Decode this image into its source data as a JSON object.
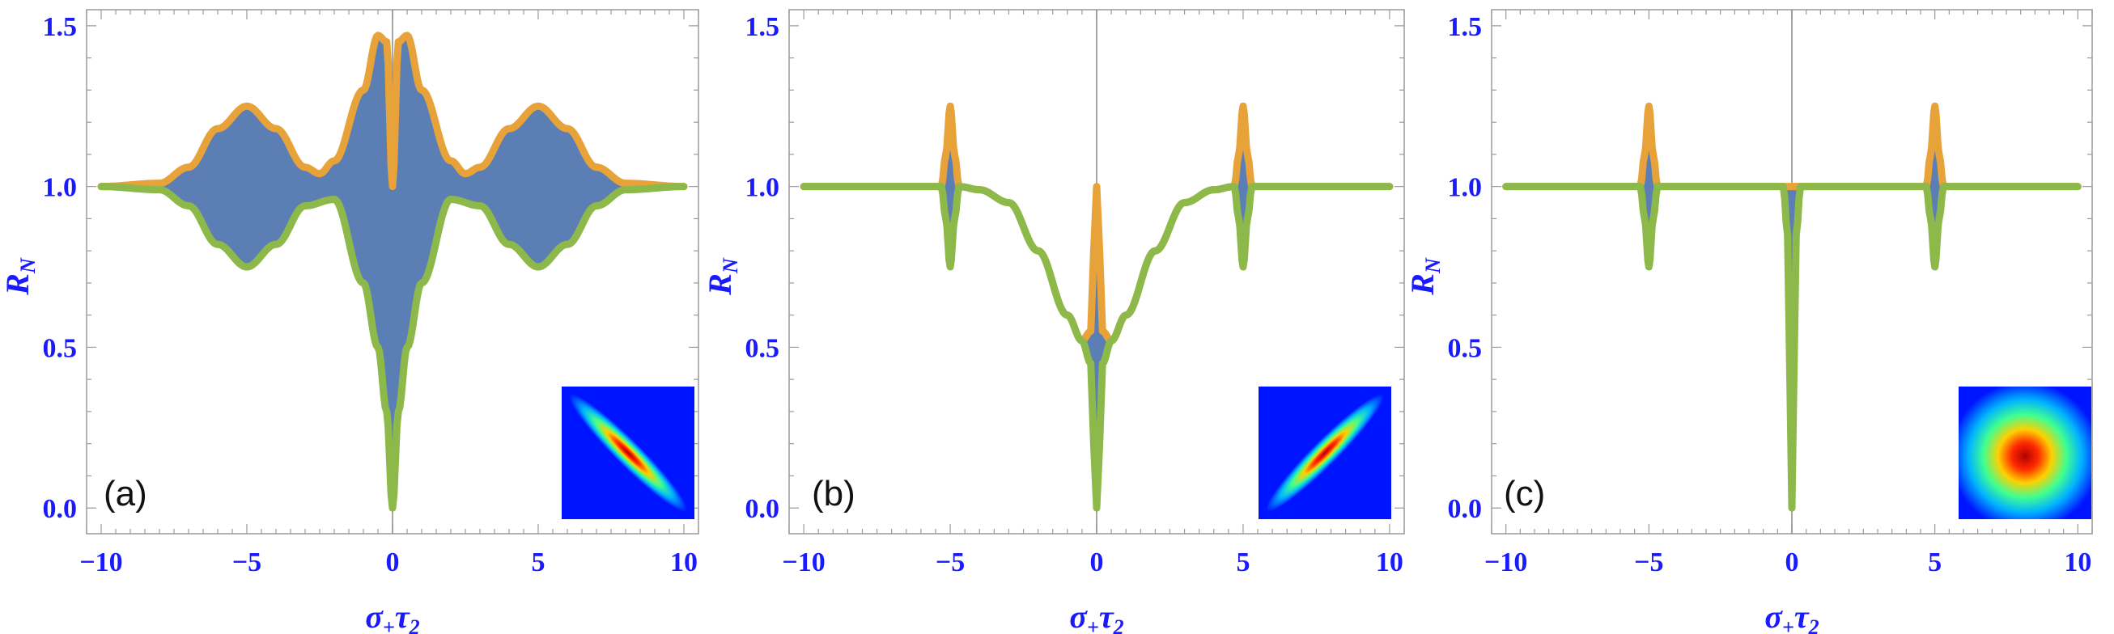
{
  "chart_data": [
    {
      "panel": "(a)",
      "type": "area",
      "xlabel": {
        "main": "σ",
        "sub1": "+",
        "mid": "τ",
        "sub2": "2"
      },
      "ylabel": {
        "main": "R",
        "sub": "N"
      },
      "xlim": [
        -10.5,
        10.5
      ],
      "ylim": [
        -0.08,
        1.55
      ],
      "xticks": [
        -10,
        -5,
        0,
        5,
        10
      ],
      "yticks": [
        0.0,
        0.5,
        1.0,
        1.5
      ],
      "xtick_labels": [
        "−10",
        "−5",
        "0",
        "5",
        "10"
      ],
      "ytick_labels": [
        "0.0",
        "0.5",
        "1.0",
        "1.5"
      ],
      "series": [
        {
          "values_x": [
            -10,
            -8,
            -7,
            -6,
            -5,
            -4,
            -3,
            -2.5,
            -2,
            -1,
            -0.5,
            -0.2,
            0,
            0.2,
            0.5,
            1,
            2,
            2.5,
            3,
            4,
            5,
            6,
            7,
            8,
            10
          ],
          "values_y": [
            1.0,
            1.01,
            1.06,
            1.18,
            1.25,
            1.18,
            1.06,
            1.04,
            1.08,
            1.3,
            1.47,
            1.45,
            1.0,
            1.45,
            1.47,
            1.3,
            1.08,
            1.04,
            1.06,
            1.18,
            1.25,
            1.18,
            1.06,
            1.01,
            1.0
          ]
        },
        {
          "values_x": [
            -10,
            -8,
            -7,
            -6,
            -5,
            -4,
            -3,
            -2,
            -1,
            -0.5,
            -0.2,
            0,
            0.2,
            0.5,
            1,
            2,
            3,
            4,
            5,
            6,
            7,
            8,
            10
          ],
          "values_y": [
            1.0,
            0.99,
            0.94,
            0.82,
            0.75,
            0.82,
            0.94,
            0.96,
            0.7,
            0.5,
            0.3,
            0.0,
            0.3,
            0.5,
            0.7,
            0.96,
            0.94,
            0.82,
            0.75,
            0.82,
            0.94,
            0.99,
            1.0
          ]
        }
      ],
      "colors": {
        "fill": "#5b7fb5",
        "upper": "#e8a23a",
        "lower": "#8db84a"
      },
      "inset": {
        "kind": "ellipse",
        "orientation": "anti-diagonal"
      }
    },
    {
      "panel": "(b)",
      "type": "area",
      "xlabel": {
        "main": "σ",
        "sub1": "+",
        "mid": "τ",
        "sub2": "2"
      },
      "ylabel": {
        "main": "R",
        "sub": "N"
      },
      "xlim": [
        -10.5,
        10.5
      ],
      "ylim": [
        -0.08,
        1.55
      ],
      "xticks": [
        -10,
        -5,
        0,
        5,
        10
      ],
      "yticks": [
        0.0,
        0.5,
        1.0,
        1.5
      ],
      "xtick_labels": [
        "−10",
        "−5",
        "0",
        "5",
        "10"
      ],
      "ytick_labels": [
        "0.0",
        "0.5",
        "1.0",
        "1.5"
      ],
      "series": [
        {
          "values_x": [
            -10,
            -5.3,
            -5.15,
            -5,
            -4.85,
            -4.7,
            -4,
            -3,
            -2,
            -1,
            -0.5,
            -0.2,
            -0.1,
            0,
            0.1,
            0.2,
            0.5,
            1,
            2,
            3,
            4,
            4.7,
            4.85,
            5,
            5.15,
            5.3,
            10
          ],
          "values_y": [
            1.0,
            1.0,
            1.1,
            1.25,
            1.1,
            1.0,
            0.99,
            0.95,
            0.8,
            0.6,
            0.52,
            0.55,
            0.8,
            1.0,
            0.8,
            0.55,
            0.52,
            0.6,
            0.8,
            0.95,
            0.99,
            1.0,
            1.1,
            1.25,
            1.1,
            1.0,
            1.0
          ]
        },
        {
          "values_x": [
            -10,
            -5.3,
            -5.15,
            -5,
            -4.85,
            -4.7,
            -4,
            -3,
            -2,
            -1,
            -0.5,
            -0.2,
            -0.1,
            0,
            0.1,
            0.2,
            0.5,
            1,
            2,
            3,
            4,
            4.7,
            4.85,
            5,
            5.15,
            5.3,
            10
          ],
          "values_y": [
            1.0,
            1.0,
            0.9,
            0.75,
            0.9,
            1.0,
            0.99,
            0.95,
            0.8,
            0.6,
            0.52,
            0.45,
            0.2,
            0.0,
            0.2,
            0.45,
            0.52,
            0.6,
            0.8,
            0.95,
            0.99,
            1.0,
            0.9,
            0.75,
            0.9,
            1.0,
            1.0
          ]
        }
      ],
      "colors": {
        "fill": "#5b7fb5",
        "upper": "#e8a23a",
        "lower": "#8db84a"
      },
      "inset": {
        "kind": "ellipse",
        "orientation": "diagonal"
      }
    },
    {
      "panel": "(c)",
      "type": "area",
      "xlabel": {
        "main": "σ",
        "sub1": "+",
        "mid": "τ",
        "sub2": "2"
      },
      "ylabel": {
        "main": "R",
        "sub": "N"
      },
      "xlim": [
        -10.5,
        10.5
      ],
      "ylim": [
        -0.08,
        1.55
      ],
      "xticks": [
        -10,
        -5,
        0,
        5,
        10
      ],
      "yticks": [
        0.0,
        0.5,
        1.0,
        1.5
      ],
      "xtick_labels": [
        "−10",
        "−5",
        "0",
        "5",
        "10"
      ],
      "ytick_labels": [
        "0.0",
        "0.5",
        "1.0",
        "1.5"
      ],
      "series": [
        {
          "values_x": [
            -10,
            -5.3,
            -5.15,
            -5,
            -4.85,
            -4.7,
            -0.2,
            0,
            0.2,
            4.7,
            4.85,
            5,
            5.15,
            5.3,
            10
          ],
          "values_y": [
            1.0,
            1.0,
            1.1,
            1.25,
            1.1,
            1.0,
            1.0,
            1.0,
            1.0,
            1.0,
            1.1,
            1.25,
            1.1,
            1.0,
            1.0
          ]
        },
        {
          "values_x": [
            -10,
            -5.3,
            -5.15,
            -5,
            -4.85,
            -4.7,
            -0.3,
            -0.15,
            -0.05,
            0,
            0.05,
            0.15,
            0.3,
            4.7,
            4.85,
            5,
            5.15,
            5.3,
            10
          ],
          "values_y": [
            1.0,
            1.0,
            0.9,
            0.75,
            0.9,
            1.0,
            1.0,
            0.85,
            0.3,
            0.0,
            0.3,
            0.85,
            1.0,
            1.0,
            0.9,
            0.75,
            0.9,
            1.0,
            1.0
          ]
        }
      ],
      "colors": {
        "fill": "#5b7fb5",
        "upper": "#e8a23a",
        "lower": "#8db84a"
      },
      "inset": {
        "kind": "circle",
        "orientation": "none"
      }
    }
  ]
}
